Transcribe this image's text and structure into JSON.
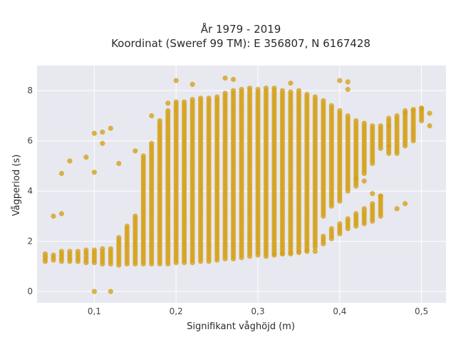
{
  "chart_data": {
    "type": "scatter",
    "title": "År 1979 - 2019",
    "subtitle": "Koordinat (Sweref 99 TM): E 356807, N 6167428",
    "xlabel": "Signifikant våghöjd (m)",
    "ylabel": "Vågperiod (s)",
    "xlim": [
      0.03,
      0.53
    ],
    "ylim": [
      -0.45,
      9.0
    ],
    "x_ticks": [
      0.1,
      0.2,
      0.3,
      0.4,
      0.5
    ],
    "x_tick_labels": [
      "0,1",
      "0,2",
      "0,3",
      "0,4",
      "0,5"
    ],
    "y_ticks": [
      0,
      2,
      4,
      6,
      8
    ],
    "y_tick_labels": [
      "0",
      "2",
      "4",
      "6",
      "8"
    ],
    "grid": true,
    "legend": "none",
    "colors": {
      "marker": "#D4A017",
      "plot_bg": "#E8E8F0",
      "grid": "#ffffff"
    },
    "series": [
      {
        "columns": [
          [
            0.04,
            1.2,
            1.5
          ],
          [
            0.05,
            1.25,
            1.5
          ],
          [
            0.06,
            1.2,
            1.6
          ],
          [
            0.07,
            1.2,
            1.6
          ],
          [
            0.08,
            1.2,
            1.6
          ],
          [
            0.09,
            1.15,
            1.65
          ],
          [
            0.1,
            1.15,
            1.7
          ],
          [
            0.11,
            1.1,
            1.7
          ],
          [
            0.12,
            1.1,
            1.75
          ],
          [
            0.13,
            1.05,
            2.2
          ],
          [
            0.14,
            1.1,
            2.6
          ],
          [
            0.15,
            1.1,
            3.0
          ],
          [
            0.16,
            1.1,
            5.4
          ],
          [
            0.17,
            1.1,
            5.9
          ],
          [
            0.18,
            1.1,
            6.8
          ],
          [
            0.19,
            1.1,
            7.2
          ],
          [
            0.2,
            1.15,
            7.6
          ],
          [
            0.21,
            1.15,
            7.6
          ],
          [
            0.22,
            1.15,
            7.7
          ],
          [
            0.23,
            1.2,
            7.7
          ],
          [
            0.24,
            1.2,
            7.7
          ],
          [
            0.25,
            1.25,
            7.8
          ],
          [
            0.26,
            1.3,
            7.9
          ],
          [
            0.27,
            1.3,
            8.0
          ],
          [
            0.28,
            1.35,
            8.1
          ],
          [
            0.29,
            1.4,
            8.1
          ],
          [
            0.3,
            1.45,
            8.1
          ],
          [
            0.31,
            1.5,
            8.1
          ],
          [
            0.32,
            1.5,
            8.1
          ],
          [
            0.33,
            1.5,
            8.0
          ],
          [
            0.34,
            1.55,
            8.0
          ],
          [
            0.35,
            1.6,
            8.0
          ],
          [
            0.36,
            1.65,
            7.9
          ],
          [
            0.37,
            1.75,
            7.8
          ],
          [
            0.38,
            1.9,
            7.6
          ],
          [
            0.39,
            2.1,
            7.4
          ],
          [
            0.4,
            2.3,
            7.2
          ],
          [
            0.41,
            2.5,
            7.0
          ],
          [
            0.42,
            2.6,
            6.8
          ],
          [
            0.43,
            2.7,
            6.7
          ],
          [
            0.44,
            2.8,
            6.6
          ],
          [
            0.45,
            3.0,
            6.6
          ],
          [
            0.46,
            5.5,
            6.9
          ],
          [
            0.47,
            5.6,
            7.0
          ],
          [
            0.48,
            5.8,
            7.2
          ],
          [
            0.49,
            6.0,
            7.2
          ],
          [
            0.5,
            6.8,
            7.3
          ]
        ],
        "gaps": [
          [
            0.38,
            2.3,
            3.0
          ],
          [
            0.39,
            2.6,
            3.4
          ],
          [
            0.4,
            2.8,
            3.6
          ],
          [
            0.41,
            3.0,
            4.0
          ],
          [
            0.42,
            3.2,
            4.2
          ],
          [
            0.43,
            3.4,
            4.6
          ],
          [
            0.44,
            3.6,
            5.0
          ],
          [
            0.45,
            3.9,
            5.6
          ]
        ],
        "points": [
          [
            0.05,
            3.0
          ],
          [
            0.06,
            3.1
          ],
          [
            0.06,
            4.7
          ],
          [
            0.07,
            5.2
          ],
          [
            0.09,
            5.35
          ],
          [
            0.1,
            4.75
          ],
          [
            0.1,
            6.3
          ],
          [
            0.11,
            5.9
          ],
          [
            0.11,
            6.35
          ],
          [
            0.12,
            6.5
          ],
          [
            0.1,
            0.0
          ],
          [
            0.12,
            0.0
          ],
          [
            0.13,
            5.1
          ],
          [
            0.15,
            5.6
          ],
          [
            0.17,
            7.0
          ],
          [
            0.19,
            7.5
          ],
          [
            0.2,
            8.4
          ],
          [
            0.22,
            8.25
          ],
          [
            0.26,
            8.5
          ],
          [
            0.27,
            8.45
          ],
          [
            0.34,
            8.3
          ],
          [
            0.4,
            8.4
          ],
          [
            0.41,
            8.35
          ],
          [
            0.41,
            8.05
          ],
          [
            0.36,
            1.6
          ],
          [
            0.37,
            1.6
          ],
          [
            0.31,
            1.4
          ],
          [
            0.32,
            1.45
          ],
          [
            0.33,
            1.5
          ],
          [
            0.34,
            1.5
          ],
          [
            0.35,
            1.55
          ],
          [
            0.46,
            6.6
          ],
          [
            0.46,
            5.8
          ],
          [
            0.47,
            5.5
          ],
          [
            0.48,
            3.5
          ],
          [
            0.47,
            3.3
          ],
          [
            0.48,
            7.1
          ],
          [
            0.49,
            7.25
          ],
          [
            0.51,
            7.1
          ],
          [
            0.51,
            6.6
          ],
          [
            0.45,
            3.8
          ],
          [
            0.44,
            3.9
          ],
          [
            0.43,
            4.4
          ],
          [
            0.42,
            4.5
          ],
          [
            0.5,
            7.3
          ]
        ]
      }
    ]
  }
}
